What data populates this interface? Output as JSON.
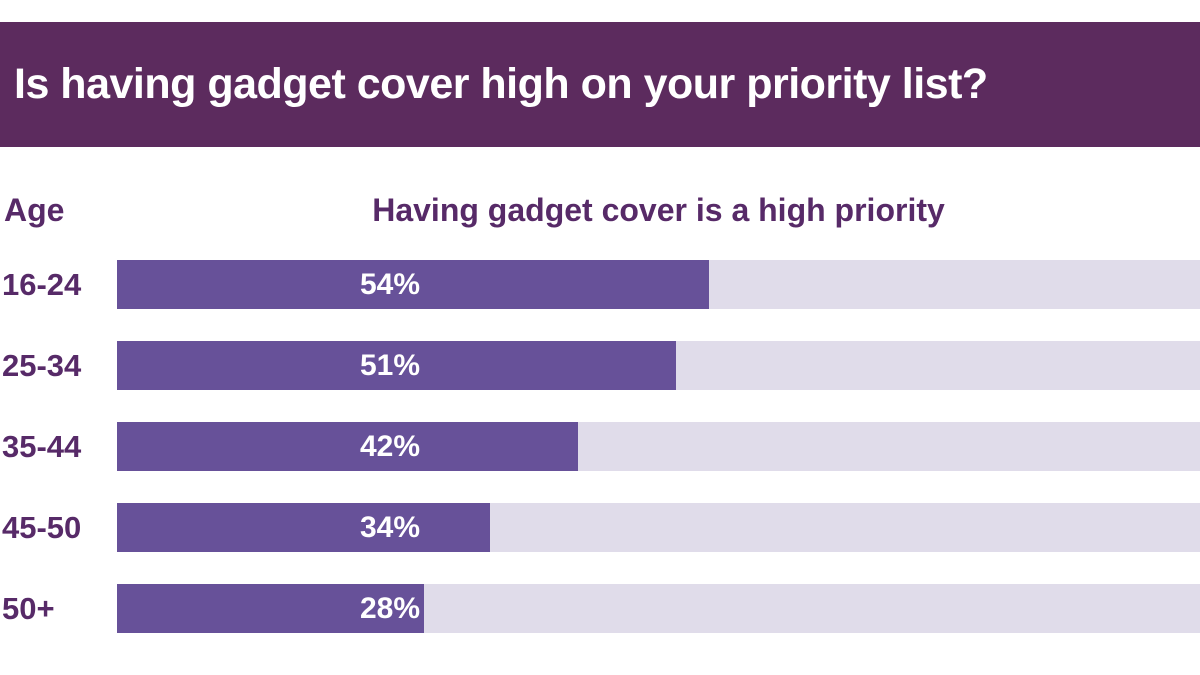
{
  "banner": {
    "title": "Is having gadget cover high on your priority list?"
  },
  "chart_data": {
    "type": "bar",
    "orientation": "horizontal",
    "title": "Having gadget cover is a high priority",
    "category_axis_label": "Age",
    "categories": [
      "16-24",
      "25-34",
      "35-44",
      "45-50",
      "50+"
    ],
    "values": [
      54,
      51,
      42,
      34,
      28
    ],
    "value_labels": [
      "54%",
      "51%",
      "42%",
      "34%",
      "28%"
    ],
    "xlim": [
      0,
      100
    ],
    "grid": false,
    "legend": "none",
    "colors": {
      "banner_bg": "#5c2b5e",
      "banner_text": "#ffffff",
      "bar_fill": "#675199",
      "bar_track": "#e0dcea",
      "heading_text": "#572a68",
      "value_text": "#ffffff",
      "background": "#ffffff"
    }
  }
}
